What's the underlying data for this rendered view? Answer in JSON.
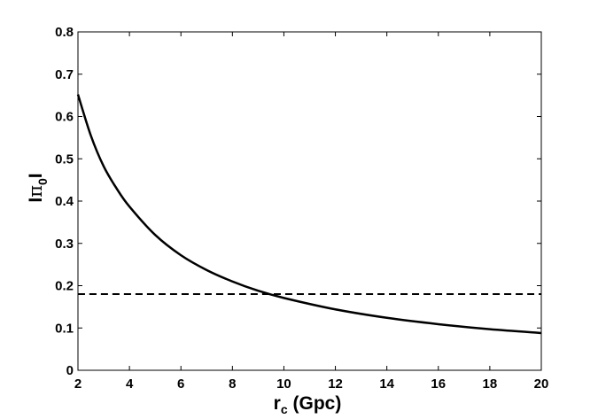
{
  "chart_data": {
    "type": "line",
    "xlabel": {
      "main": "r",
      "sub": "c",
      "rest": " (Gpc)"
    },
    "ylabel": {
      "pre": "I",
      "main": "π",
      "sub": "0",
      "post": "I"
    },
    "xlim": [
      2,
      20
    ],
    "ylim": [
      0,
      0.8
    ],
    "xticks": [
      2,
      4,
      6,
      8,
      10,
      12,
      14,
      16,
      18,
      20
    ],
    "yticks": [
      0,
      0.1,
      0.2,
      0.3,
      0.4,
      0.5,
      0.6,
      0.7,
      0.8
    ],
    "ytick_labels": [
      "0",
      "0.1",
      "0.2",
      "0.3",
      "0.4",
      "0.5",
      "0.6",
      "0.7",
      "0.8"
    ],
    "grid": false,
    "series": [
      {
        "style": "solid",
        "color": "#000000",
        "x": [
          2,
          2.5,
          3,
          3.5,
          4,
          5,
          6,
          7,
          8,
          9,
          10,
          12,
          14,
          16,
          18,
          20
        ],
        "y": [
          0.652,
          0.555,
          0.482,
          0.43,
          0.387,
          0.32,
          0.272,
          0.237,
          0.21,
          0.188,
          0.171,
          0.144,
          0.124,
          0.109,
          0.097,
          0.088
        ]
      },
      {
        "style": "dashed",
        "color": "#000000",
        "x": [
          2,
          20
        ],
        "y": [
          0.18,
          0.18
        ]
      }
    ]
  }
}
